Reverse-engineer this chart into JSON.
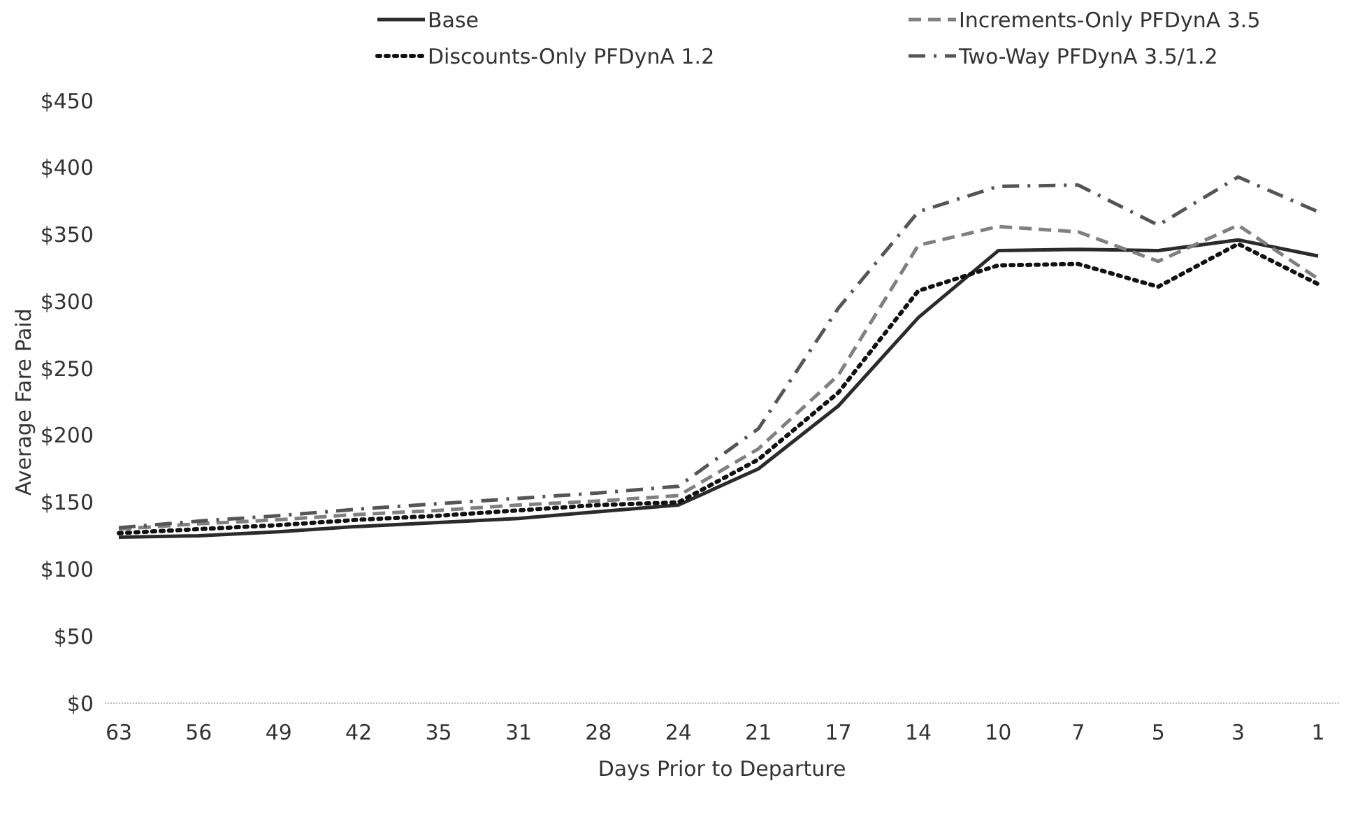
{
  "chart_data": {
    "type": "line",
    "xlabel": "Days Prior to Departure",
    "ylabel": "Average Fare Paid",
    "categories": [
      "63",
      "56",
      "49",
      "42",
      "35",
      "31",
      "28",
      "24",
      "21",
      "17",
      "14",
      "10",
      "7",
      "5",
      "3",
      "1"
    ],
    "ylim": [
      0,
      450
    ],
    "yticks": [
      {
        "value": 0,
        "label": "$0"
      },
      {
        "value": 50,
        "label": "$50"
      },
      {
        "value": 100,
        "label": "$100"
      },
      {
        "value": 150,
        "label": "$150"
      },
      {
        "value": 200,
        "label": "$200"
      },
      {
        "value": 250,
        "label": "$250"
      },
      {
        "value": 300,
        "label": "$300"
      },
      {
        "value": 350,
        "label": "$350"
      },
      {
        "value": 400,
        "label": "$400"
      },
      {
        "value": 450,
        "label": "$450"
      }
    ],
    "grid": false,
    "legend": "top",
    "marker": "none",
    "series": [
      {
        "name": "Base",
        "color": "#2b2b2b",
        "line_style": "solid",
        "values": [
          124,
          125,
          128,
          132,
          135,
          138,
          143,
          148,
          175,
          222,
          288,
          338,
          339,
          338,
          346,
          334
        ]
      },
      {
        "name": "Increments-Only PFDynA 3.5",
        "color": "#808080",
        "line_style": "dashed",
        "values": [
          130,
          134,
          137,
          141,
          144,
          148,
          151,
          155,
          190,
          245,
          342,
          356,
          352,
          330,
          357,
          317
        ]
      },
      {
        "name": "Discounts-Only PFDynA 1.2",
        "color": "#111111",
        "line_style": "dotted",
        "values": [
          127,
          130,
          133,
          137,
          140,
          144,
          148,
          150,
          182,
          232,
          308,
          327,
          328,
          311,
          343,
          313
        ]
      },
      {
        "name": "Two-Way PFDynA 3.5/1.2",
        "color": "#555555",
        "line_style": "dashdot",
        "values": [
          131,
          136,
          140,
          145,
          149,
          153,
          157,
          162,
          205,
          295,
          367,
          386,
          387,
          357,
          393,
          367
        ]
      }
    ]
  }
}
